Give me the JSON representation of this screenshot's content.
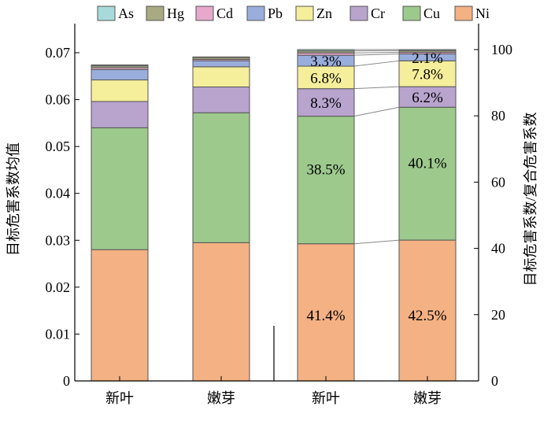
{
  "chart_data": {
    "type": "bar",
    "stacked": true,
    "categories": [
      "新叶",
      "嫩芽",
      "新叶",
      "嫩芽"
    ],
    "legend_position": "top",
    "grid": false,
    "series_order": [
      "As",
      "Hg",
      "Cd",
      "Pb",
      "Zn",
      "Cr",
      "Cu",
      "Ni"
    ],
    "series": [
      {
        "name": "Ni",
        "color": "#F4B183",
        "left_values": [
          0.028,
          0.0295
        ],
        "right_values": [
          41.4,
          42.5
        ]
      },
      {
        "name": "Cu",
        "color": "#9DC98D",
        "left_values": [
          0.026,
          0.0277
        ],
        "right_values": [
          38.5,
          40.1
        ]
      },
      {
        "name": "Cr",
        "color": "#B9A4CE",
        "left_values": [
          0.0056,
          0.0055
        ],
        "right_values": [
          8.3,
          6.2
        ]
      },
      {
        "name": "Zn",
        "color": "#F5EE9B",
        "left_values": [
          0.0046,
          0.0043
        ],
        "right_values": [
          6.8,
          7.8
        ]
      },
      {
        "name": "Pb",
        "color": "#9AAEDC",
        "left_values": [
          0.0022,
          0.0013
        ],
        "right_values": [
          3.3,
          2.1
        ]
      },
      {
        "name": "Cd",
        "color": "#E8A8CC",
        "left_values": [
          0.0004,
          0.0003
        ],
        "right_values": [
          0.7,
          0.5
        ]
      },
      {
        "name": "Hg",
        "color": "#A9A982",
        "left_values": [
          0.0004,
          0.0004
        ],
        "right_values": [
          0.6,
          0.5
        ]
      },
      {
        "name": "As",
        "color": "#A8DADB",
        "left_values": [
          0.0002,
          0.0001
        ],
        "right_values": [
          0.4,
          0.3
        ]
      }
    ],
    "percent_labels": [
      {
        "bar": 2,
        "series": "Ni",
        "text": "41.4%"
      },
      {
        "bar": 2,
        "series": "Cu",
        "text": "38.5%"
      },
      {
        "bar": 2,
        "series": "Cr",
        "text": "8.3%"
      },
      {
        "bar": 2,
        "series": "Zn",
        "text": "6.8%"
      },
      {
        "bar": 2,
        "series": "Pb",
        "text": "3.3%"
      },
      {
        "bar": 3,
        "series": "Ni",
        "text": "42.5%"
      },
      {
        "bar": 3,
        "series": "Cu",
        "text": "40.1%"
      },
      {
        "bar": 3,
        "series": "Cr",
        "text": "6.2%"
      },
      {
        "bar": 3,
        "series": "Zn",
        "text": "7.8%"
      },
      {
        "bar": 3,
        "series": "Pb",
        "text": "2.1%"
      }
    ],
    "left_axis": {
      "label": "目标危害系数均值",
      "ylim": [
        0,
        0.07
      ],
      "ticks": [
        "0",
        "0.01",
        "0.02",
        "0.03",
        "0.04",
        "0.05",
        "0.06",
        "0.07"
      ]
    },
    "right_axis": {
      "label": "目标危害系数/复合危害系数",
      "ylim": [
        0,
        100
      ],
      "ticks": [
        "0",
        "20",
        "40",
        "60",
        "80",
        "100"
      ]
    }
  }
}
